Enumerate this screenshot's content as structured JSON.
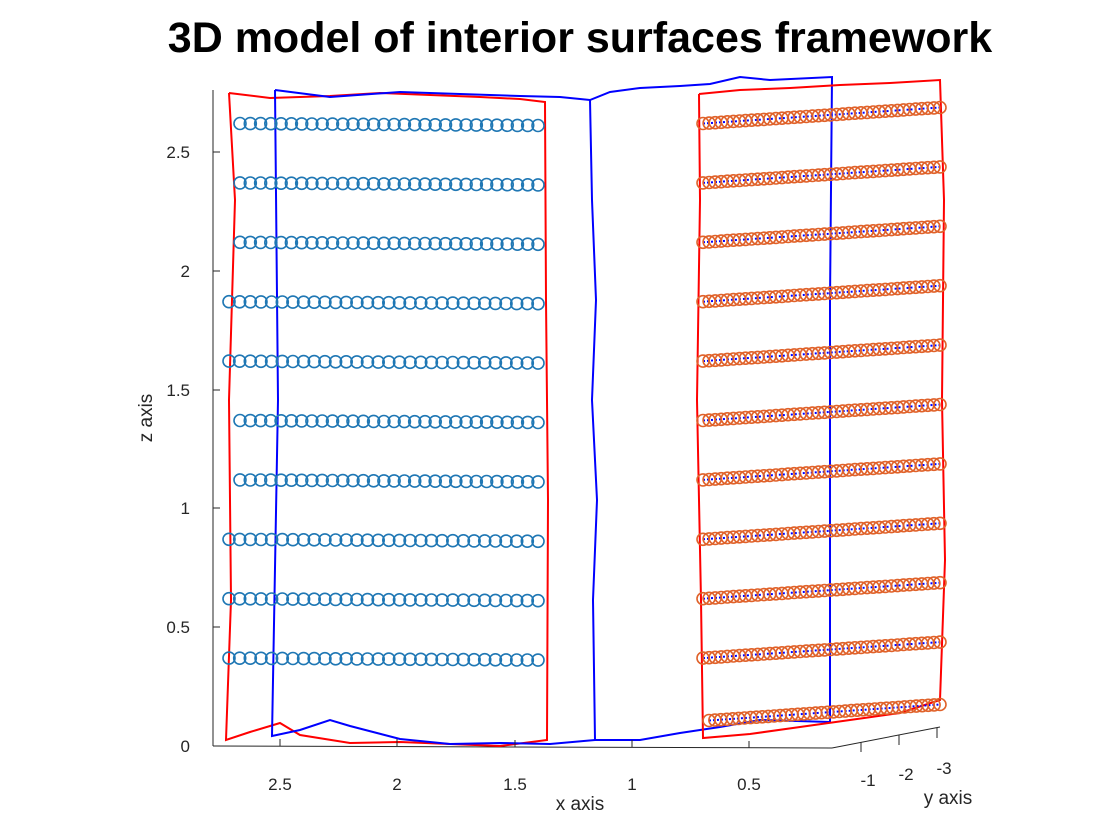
{
  "chart_data": {
    "type": "scatter",
    "projection": "3d",
    "title": "3D model of interior surfaces framework",
    "xlabel": "x axis",
    "ylabel": "y axis",
    "zlabel": "z axis",
    "x_ticks": [
      "2.5",
      "2",
      "1.5",
      "1",
      "0.5"
    ],
    "y_ticks": [
      "-1",
      "-2",
      "-3"
    ],
    "z_ticks": [
      "0",
      "0.5",
      "1",
      "1.5",
      "2",
      "2.5"
    ],
    "xlim": [
      0.1,
      2.78
    ],
    "ylim": [
      -3.2,
      0
    ],
    "zlim": [
      0,
      2.75
    ],
    "grid": false,
    "colors": {
      "wall_outline": "#ff0000",
      "ceiling_floor_outline": "#0000ff",
      "left_markers": "#1f77b4",
      "right_markers": "#e0622a",
      "right_inner_points": "#0000ff"
    },
    "series": [
      {
        "marker": "circle",
        "color": "#1f77b4",
        "rows_z": [
          2.62,
          2.37,
          2.12,
          1.87,
          1.62,
          1.37,
          1.12,
          0.87,
          0.62,
          0.37
        ],
        "x_range": [
          1.4,
          2.7
        ],
        "points_per_row": 30
      },
      {
        "marker": "circle",
        "color": "#e0622a",
        "rows_z": [
          2.62,
          2.37,
          2.12,
          1.87,
          1.62,
          1.37,
          1.12,
          0.87,
          0.62,
          0.37,
          0.12
        ],
        "x_range": [
          0.1,
          0.68
        ],
        "y_range": [
          0,
          -3
        ],
        "points_per_row": 40
      }
    ]
  }
}
